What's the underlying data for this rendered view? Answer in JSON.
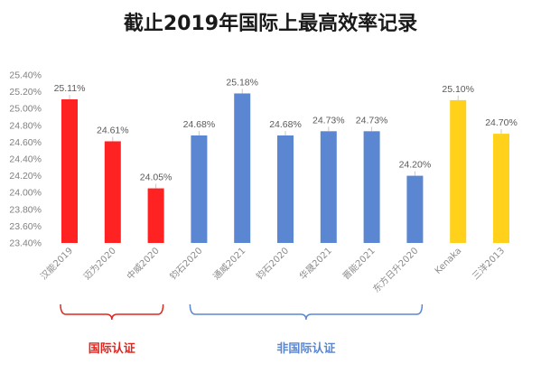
{
  "chart_data": {
    "type": "bar",
    "title": "截止2019年国际上最高效率记录",
    "xlabel": "",
    "ylabel": "",
    "ylim": [
      23.4,
      25.4
    ],
    "ytick_step": 0.2,
    "yticks": [
      "23.40%",
      "23.60%",
      "23.80%",
      "24.00%",
      "24.20%",
      "24.40%",
      "24.60%",
      "24.80%",
      "25.00%",
      "25.20%",
      "25.40%"
    ],
    "grid": false,
    "legend": "none",
    "categories": [
      "汉能2019",
      "迈为2020",
      "中威2020",
      "钧石2020",
      "通威2021",
      "钧石2020",
      "华晟2021",
      "晋能2021",
      "东方日升2020",
      "Kenaka",
      "三洋2013"
    ],
    "values": [
      25.11,
      24.61,
      24.05,
      24.68,
      25.18,
      24.68,
      24.73,
      24.73,
      24.2,
      25.1,
      24.7
    ],
    "data_labels": [
      "25.11%",
      "24.61%",
      "24.05%",
      "24.68%",
      "25.18%",
      "24.68%",
      "24.73%",
      "24.73%",
      "24.20%",
      "25.10%",
      "24.70%"
    ],
    "colors": [
      "#ff2222",
      "#ff2222",
      "#ff2222",
      "#5b87d2",
      "#5b87d2",
      "#5b87d2",
      "#5b87d2",
      "#5b87d2",
      "#5b87d2",
      "#ffd11a",
      "#ffd11a"
    ],
    "groups": [
      {
        "label": "国际认证",
        "start": 0,
        "end": 2,
        "color": "#e0261e"
      },
      {
        "label": "非国际认证",
        "start": 3,
        "end": 8,
        "color": "#5b87d2"
      }
    ]
  }
}
